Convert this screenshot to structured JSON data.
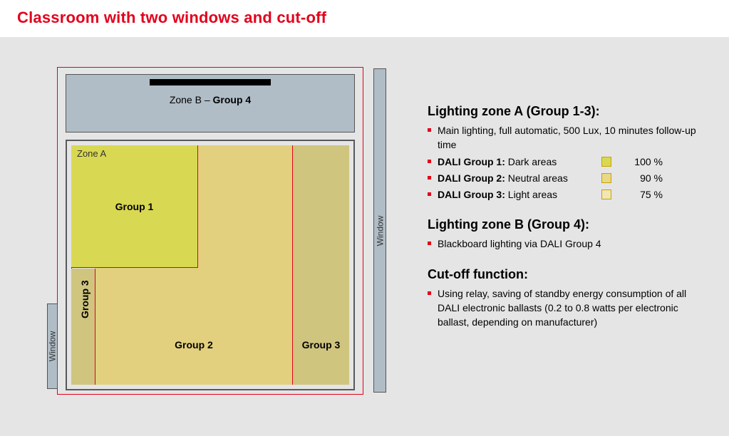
{
  "title": "Classroom with two windows and cut-off",
  "diagram": {
    "zoneB_prefix": "Zone B – ",
    "zoneB_group": "Group 4",
    "zoneA_title": "Zone A",
    "g1": "Group 1",
    "g2": "Group 2",
    "g3_left": "Group 3",
    "g3_right": "Group 3",
    "window": "Window",
    "colors": {
      "page_bg": "#e5e5e5",
      "red": "#e3001b",
      "zoneB_bg": "#b0bdc7",
      "zoneA_border": "#58595b",
      "g1_bg": "#d9d853",
      "g2_bg": "#e2d07e",
      "g3_bg": "#cfc57f",
      "blackboard": "#000000"
    }
  },
  "sections": {
    "a_heading": "Lighting zone A (Group 1-3):",
    "a_main": "Main lighting, full automatic, 500 Lux, 10 minutes follow-up time",
    "rows": [
      {
        "bold": "DALI Group 1:",
        "rest": " Dark areas",
        "swatch": "#d9d853",
        "pct": "100 %"
      },
      {
        "bold": "DALI Group 2:",
        "rest": " Neutral areas",
        "swatch": "#e8d889",
        "pct": "90 %"
      },
      {
        "bold": "DALI Group 3:",
        "rest": " Light areas",
        "swatch": "#f1e6b5",
        "pct": "75 %"
      }
    ],
    "b_heading": "Lighting zone B (Group 4):",
    "b_line": "Blackboard lighting via DALI Group 4",
    "c_heading": "Cut-off function:",
    "c_line": "Using relay, saving of standby energy consumption of all DALI electronic ballasts (0.2 to 0.8 watts per electronic ballast, depending on manufacturer)"
  }
}
